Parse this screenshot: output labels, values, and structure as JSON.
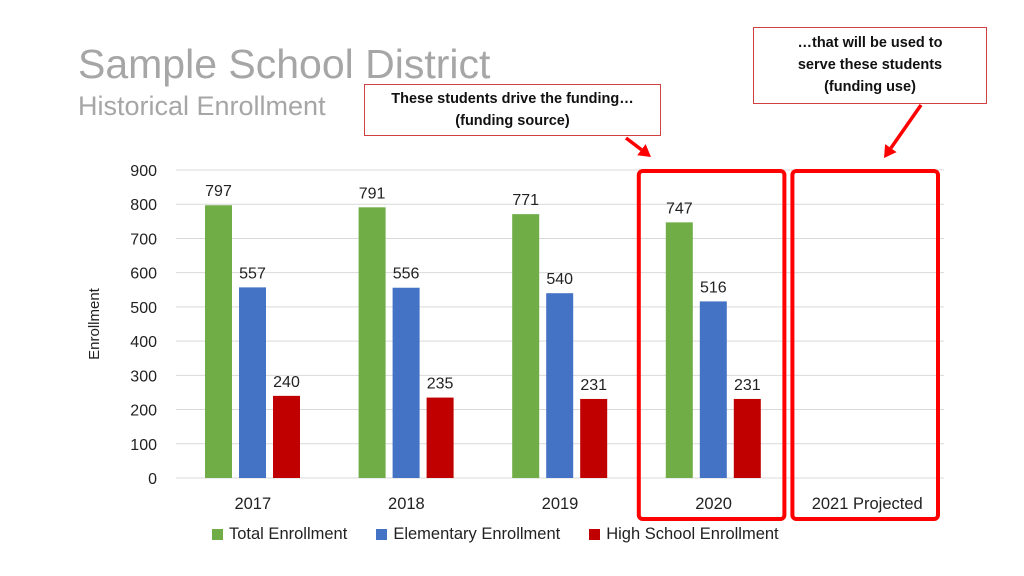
{
  "header": {
    "title": "Sample School District",
    "subtitle": "Historical Enrollment"
  },
  "callouts": {
    "source": {
      "line1": "These students drive the funding…",
      "line2": "(funding source)"
    },
    "use": {
      "line1": "…that will be used to",
      "line2": "serve these students",
      "line3": "(funding use)"
    }
  },
  "colors": {
    "total": "#70ad47",
    "elementary": "#4472c4",
    "high_school": "#c00000",
    "highlight": "#ff0000",
    "grid": "#d9d9d9"
  },
  "chart_data": {
    "type": "bar",
    "title": "",
    "xlabel": "",
    "ylabel": "Enrollment",
    "ylim": [
      0,
      900
    ],
    "yticks": [
      0,
      100,
      200,
      300,
      400,
      500,
      600,
      700,
      800,
      900
    ],
    "categories": [
      "2017",
      "2018",
      "2019",
      "2020",
      "2021 Projected"
    ],
    "series": [
      {
        "name": "Total Enrollment",
        "color": "#70ad47",
        "values": [
          797,
          791,
          771,
          747,
          null
        ]
      },
      {
        "name": "Elementary Enrollment",
        "color": "#4472c4",
        "values": [
          557,
          556,
          540,
          516,
          null
        ]
      },
      {
        "name": "High School Enrollment",
        "color": "#c00000",
        "values": [
          240,
          235,
          231,
          231,
          null
        ]
      }
    ],
    "grid": true,
    "legend": "bottom",
    "highlighted_categories": [
      "2020",
      "2021 Projected"
    ]
  }
}
